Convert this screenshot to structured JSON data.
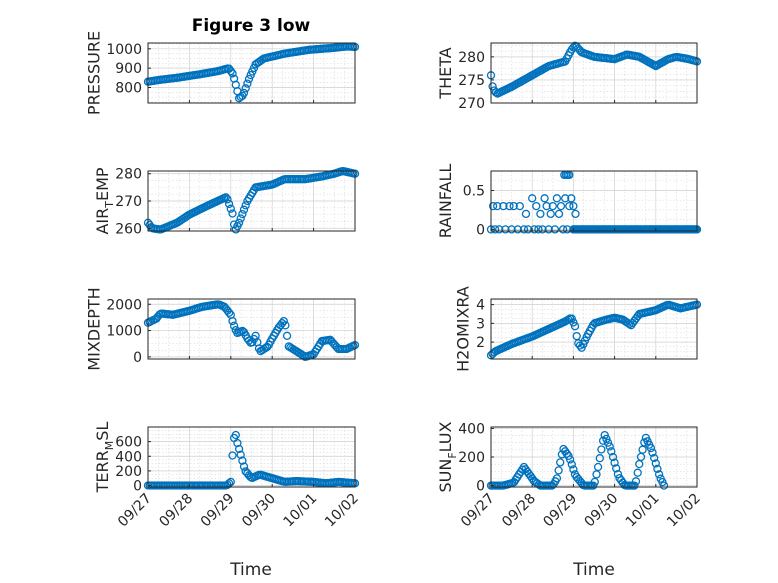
{
  "figure": {
    "title": "Figure 3 low",
    "xlabel": "Time"
  },
  "chart_data": [
    {
      "type": "scatter",
      "id": "pressure",
      "ylabel": "PRESSURE",
      "title": "Figure 3 low",
      "ylim": [
        720,
        1030
      ],
      "yticks": [
        800,
        900,
        1000
      ],
      "xticks": [
        "09/27",
        "09/28",
        "09/29",
        "09/30",
        "10/01",
        "10/02"
      ],
      "anchors": [
        [
          0.0,
          830
        ],
        [
          0.3,
          840
        ],
        [
          0.7,
          850
        ],
        [
          1.0,
          860
        ],
        [
          1.3,
          870
        ],
        [
          1.7,
          885
        ],
        [
          1.95,
          900
        ],
        [
          2.05,
          870
        ],
        [
          2.15,
          790
        ],
        [
          2.2,
          745
        ],
        [
          2.3,
          760
        ],
        [
          2.45,
          850
        ],
        [
          2.6,
          920
        ],
        [
          2.8,
          950
        ],
        [
          3.0,
          960
        ],
        [
          3.3,
          975
        ],
        [
          3.6,
          985
        ],
        [
          3.9,
          995
        ],
        [
          4.2,
          1000
        ],
        [
          4.5,
          1005
        ],
        [
          4.8,
          1012
        ],
        [
          5.0,
          1010
        ]
      ]
    },
    {
      "type": "scatter",
      "id": "theta",
      "ylabel": "THETA",
      "ylim": [
        270,
        283
      ],
      "yticks": [
        270,
        275,
        280
      ],
      "xticks": [
        "09/27",
        "09/28",
        "09/29",
        "09/30",
        "10/01",
        "10/02"
      ],
      "anchors": [
        [
          0.0,
          276
        ],
        [
          0.05,
          273
        ],
        [
          0.15,
          272
        ],
        [
          0.5,
          273.5
        ],
        [
          1.0,
          276
        ],
        [
          1.4,
          278
        ],
        [
          1.8,
          279
        ],
        [
          1.95,
          281.5
        ],
        [
          2.05,
          282.5
        ],
        [
          2.2,
          281
        ],
        [
          2.5,
          280
        ],
        [
          3.0,
          279.5
        ],
        [
          3.3,
          280.5
        ],
        [
          3.6,
          280
        ],
        [
          4.0,
          278
        ],
        [
          4.3,
          279.5
        ],
        [
          4.5,
          280
        ],
        [
          4.8,
          279.5
        ],
        [
          5.0,
          279
        ]
      ]
    },
    {
      "type": "scatter",
      "id": "air_temp",
      "ylabel": "AIR",
      "ylabel_sub": "T",
      "ylabel_suffix": "EMP",
      "ylim": [
        259,
        281
      ],
      "yticks": [
        260,
        270,
        280
      ],
      "xticks": [
        "09/27",
        "09/28",
        "09/29",
        "09/30",
        "10/01",
        "10/02"
      ],
      "anchors": [
        [
          0.0,
          262
        ],
        [
          0.1,
          260
        ],
        [
          0.3,
          259.5
        ],
        [
          0.7,
          262
        ],
        [
          1.0,
          265
        ],
        [
          1.4,
          268
        ],
        [
          1.9,
          271.5
        ],
        [
          2.05,
          265
        ],
        [
          2.1,
          259
        ],
        [
          2.2,
          262
        ],
        [
          2.4,
          270
        ],
        [
          2.6,
          275
        ],
        [
          3.0,
          276
        ],
        [
          3.3,
          278
        ],
        [
          3.8,
          278
        ],
        [
          4.2,
          279
        ],
        [
          4.5,
          280
        ],
        [
          4.7,
          281
        ],
        [
          5.0,
          280
        ]
      ]
    },
    {
      "type": "scatter",
      "id": "rainfall",
      "ylabel": "RAINFALL",
      "ylim": [
        -0.02,
        0.75
      ],
      "yticks": [
        0,
        0.5
      ],
      "xticks": [
        "09/27",
        "09/28",
        "09/29",
        "09/30",
        "10/01",
        "10/02"
      ],
      "points": [
        [
          0.0,
          0
        ],
        [
          0.05,
          0.3
        ],
        [
          0.1,
          0
        ],
        [
          0.15,
          0.3
        ],
        [
          0.2,
          0
        ],
        [
          0.3,
          0.3
        ],
        [
          0.35,
          0
        ],
        [
          0.45,
          0.3
        ],
        [
          0.5,
          0
        ],
        [
          0.55,
          0.3
        ],
        [
          0.65,
          0
        ],
        [
          0.7,
          0.3
        ],
        [
          0.8,
          0
        ],
        [
          0.85,
          0.2
        ],
        [
          0.9,
          0
        ],
        [
          1.0,
          0.4
        ],
        [
          1.05,
          0
        ],
        [
          1.1,
          0.3
        ],
        [
          1.15,
          0
        ],
        [
          1.2,
          0.2
        ],
        [
          1.25,
          0
        ],
        [
          1.3,
          0.4
        ],
        [
          1.35,
          0.3
        ],
        [
          1.4,
          0
        ],
        [
          1.45,
          0.2
        ],
        [
          1.5,
          0.3
        ],
        [
          1.55,
          0
        ],
        [
          1.6,
          0.4
        ],
        [
          1.65,
          0.2
        ],
        [
          1.7,
          0.3
        ],
        [
          1.75,
          0
        ],
        [
          1.8,
          0.4
        ],
        [
          1.85,
          0
        ],
        [
          1.9,
          0.3
        ],
        [
          2.0,
          0
        ],
        [
          2.05,
          0.2
        ],
        [
          1.78,
          0.7
        ],
        [
          1.82,
          0.7
        ],
        [
          1.86,
          0.7
        ],
        [
          1.9,
          0.7
        ],
        [
          1.95,
          0.4
        ],
        [
          2.0,
          0.3
        ]
      ],
      "baseline": {
        "value": 0,
        "from": 2.0,
        "to": 5.0
      }
    },
    {
      "type": "scatter",
      "id": "mixdepth",
      "ylabel": "MIXDEPTH",
      "ylim": [
        -80,
        2200
      ],
      "yticks": [
        0,
        1000,
        2000
      ],
      "xticks": [
        "09/27",
        "09/28",
        "09/29",
        "09/30",
        "10/01",
        "10/02"
      ],
      "anchors": [
        [
          0.0,
          1300
        ],
        [
          0.2,
          1450
        ],
        [
          0.3,
          1650
        ],
        [
          0.6,
          1600
        ],
        [
          1.0,
          1750
        ],
        [
          1.3,
          1900
        ],
        [
          1.5,
          1950
        ],
        [
          1.7,
          2000
        ],
        [
          1.85,
          1900
        ],
        [
          2.0,
          1600
        ],
        [
          2.05,
          1300
        ],
        [
          2.15,
          900
        ],
        [
          2.3,
          1000
        ],
        [
          2.4,
          700
        ],
        [
          2.5,
          500
        ],
        [
          2.6,
          800
        ],
        [
          2.7,
          200
        ],
        [
          2.9,
          400
        ],
        [
          3.0,
          700
        ],
        [
          3.15,
          1100
        ],
        [
          3.3,
          1400
        ],
        [
          3.4,
          400
        ],
        [
          3.6,
          200
        ],
        [
          3.8,
          0
        ],
        [
          4.0,
          100
        ],
        [
          4.2,
          600
        ],
        [
          4.4,
          650
        ],
        [
          4.6,
          300
        ],
        [
          4.8,
          300
        ],
        [
          5.0,
          450
        ]
      ]
    },
    {
      "type": "scatter",
      "id": "h2omixra",
      "ylabel": "H2OMIXRA",
      "ylim": [
        1.1,
        4.3
      ],
      "yticks": [
        2,
        3,
        4
      ],
      "xticks": [
        "09/27",
        "09/28",
        "09/29",
        "09/30",
        "10/01",
        "10/02"
      ],
      "anchors": [
        [
          0.0,
          1.3
        ],
        [
          0.1,
          1.5
        ],
        [
          0.5,
          1.9
        ],
        [
          1.0,
          2.3
        ],
        [
          1.4,
          2.7
        ],
        [
          1.8,
          3.1
        ],
        [
          1.95,
          3.3
        ],
        [
          2.05,
          2.8
        ],
        [
          2.1,
          2.0
        ],
        [
          2.2,
          1.7
        ],
        [
          2.35,
          2.4
        ],
        [
          2.5,
          3.0
        ],
        [
          2.8,
          3.2
        ],
        [
          3.0,
          3.3
        ],
        [
          3.2,
          3.2
        ],
        [
          3.4,
          2.9
        ],
        [
          3.6,
          3.5
        ],
        [
          4.0,
          3.7
        ],
        [
          4.3,
          4.0
        ],
        [
          4.6,
          3.8
        ],
        [
          4.8,
          3.9
        ],
        [
          5.0,
          4.0
        ]
      ]
    },
    {
      "type": "scatter",
      "id": "terr_msl",
      "ylabel": "TERR",
      "ylabel_sub": "M",
      "ylabel_suffix": "SL",
      "ylim": [
        -20,
        800
      ],
      "yticks": [
        0,
        200,
        400,
        600
      ],
      "xticks": [
        "09/27",
        "09/28",
        "09/29",
        "09/30",
        "10/01",
        "10/02"
      ],
      "anchors": [
        [
          0.0,
          0
        ],
        [
          1.9,
          0
        ],
        [
          2.0,
          50
        ],
        [
          2.05,
          500
        ],
        [
          2.1,
          750
        ],
        [
          2.15,
          600
        ],
        [
          2.25,
          400
        ],
        [
          2.35,
          200
        ],
        [
          2.5,
          100
        ],
        [
          2.7,
          150
        ],
        [
          3.0,
          100
        ],
        [
          3.3,
          50
        ],
        [
          3.6,
          60
        ],
        [
          4.0,
          50
        ],
        [
          4.3,
          30
        ],
        [
          4.6,
          50
        ],
        [
          5.0,
          30
        ]
      ]
    },
    {
      "type": "scatter",
      "id": "sun_flux",
      "ylabel": "SUN",
      "ylabel_sub": "F",
      "ylabel_suffix": "LUX",
      "ylim": [
        -10,
        410
      ],
      "yticks": [
        0,
        200,
        400
      ],
      "xticks": [
        "09/27",
        "09/28",
        "09/29",
        "09/30",
        "10/01",
        "10/02"
      ],
      "anchors": [
        [
          0.0,
          0
        ],
        [
          0.3,
          0
        ],
        [
          0.55,
          20
        ],
        [
          0.8,
          130
        ],
        [
          1.05,
          30
        ],
        [
          1.2,
          0
        ],
        [
          1.5,
          0
        ],
        [
          1.6,
          50
        ],
        [
          1.75,
          260
        ],
        [
          1.9,
          200
        ],
        [
          2.05,
          70
        ],
        [
          2.25,
          0
        ],
        [
          2.5,
          0
        ],
        [
          2.6,
          130
        ],
        [
          2.75,
          360
        ],
        [
          2.9,
          260
        ],
        [
          3.1,
          60
        ],
        [
          3.25,
          0
        ],
        [
          3.5,
          0
        ],
        [
          3.6,
          150
        ],
        [
          3.75,
          340
        ],
        [
          3.9,
          250
        ],
        [
          4.1,
          60
        ],
        [
          4.2,
          0
        ]
      ]
    }
  ]
}
